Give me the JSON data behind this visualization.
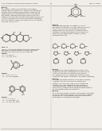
{
  "page_color": "#f0ede8",
  "text_color": "#2a2a2a",
  "line_color": "#555555",
  "header_left": "U.S. PATENT APPLICATION PUBLICATION",
  "header_center": "21",
  "header_right": "May 1, 2014",
  "figsize": [
    1.28,
    1.65
  ],
  "dpi": 100
}
